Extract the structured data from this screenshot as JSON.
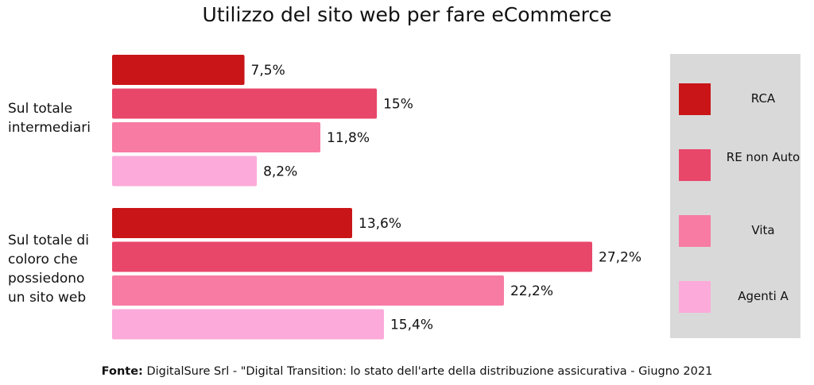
{
  "chart_data": {
    "type": "bar",
    "orientation": "horizontal",
    "title": "Utilizzo del sito web per fare eCommerce",
    "categories": [
      "Sul totale intermediari",
      "Sul totale di coloro che possiedono un sito web"
    ],
    "series": [
      {
        "name": "RCA",
        "color": "#c91517",
        "values": [
          7.5,
          13.6
        ],
        "labels": [
          "7,5%",
          "13,6%"
        ]
      },
      {
        "name": "RE non Auto",
        "color": "#e8476a",
        "values": [
          15,
          27.2
        ],
        "labels": [
          "15%",
          "27,2%"
        ]
      },
      {
        "name": "Vita",
        "color": "#f77ba3",
        "values": [
          11.8,
          22.2
        ],
        "labels": [
          "11,8%",
          "22,2%"
        ]
      },
      {
        "name": "Agenti A",
        "color": "#fcaad9",
        "values": [
          8.2,
          15.4
        ],
        "labels": [
          "8,2%",
          "15,4%"
        ]
      }
    ],
    "xlim": [
      0,
      27.2
    ],
    "grid": false,
    "legend_position": "right"
  },
  "category_lines": [
    [
      "Sul totale",
      "intermediari"
    ],
    [
      "Sul totale di",
      "coloro che",
      "possiedono",
      "un sito web"
    ]
  ],
  "source": {
    "prefix": "Fonte:",
    "text": " DigitalSure Srl - \"Digital Transition: lo stato dell'arte della distribuzione assicurativa - Giugno 2021"
  }
}
